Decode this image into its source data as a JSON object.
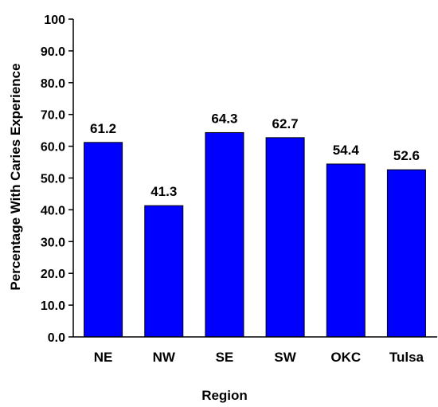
{
  "chart_data": {
    "type": "bar",
    "title": "",
    "xlabel": "Region",
    "ylabel": "Percentage With Caries Experience",
    "categories": [
      "NE",
      "NW",
      "SE",
      "SW",
      "OKC",
      "Tulsa"
    ],
    "values": [
      61.2,
      41.3,
      64.3,
      62.7,
      54.4,
      52.6
    ],
    "value_labels": [
      "61.2",
      "41.3",
      "64.3",
      "62.7",
      "54.4",
      "52.6"
    ],
    "ylim": [
      0,
      100
    ],
    "yticks": [
      0,
      10,
      20,
      30,
      40,
      50,
      60,
      70,
      80,
      90,
      100
    ],
    "ytick_labels": [
      "0.0",
      "10.0",
      "20.0",
      "30.0",
      "40.0",
      "50.0",
      "60.0",
      "70.0",
      "80.0",
      "90.0",
      "100"
    ],
    "grid": false,
    "legend": "none",
    "bar_color": "#0000ff",
    "bar_edge_color": "#000000"
  }
}
